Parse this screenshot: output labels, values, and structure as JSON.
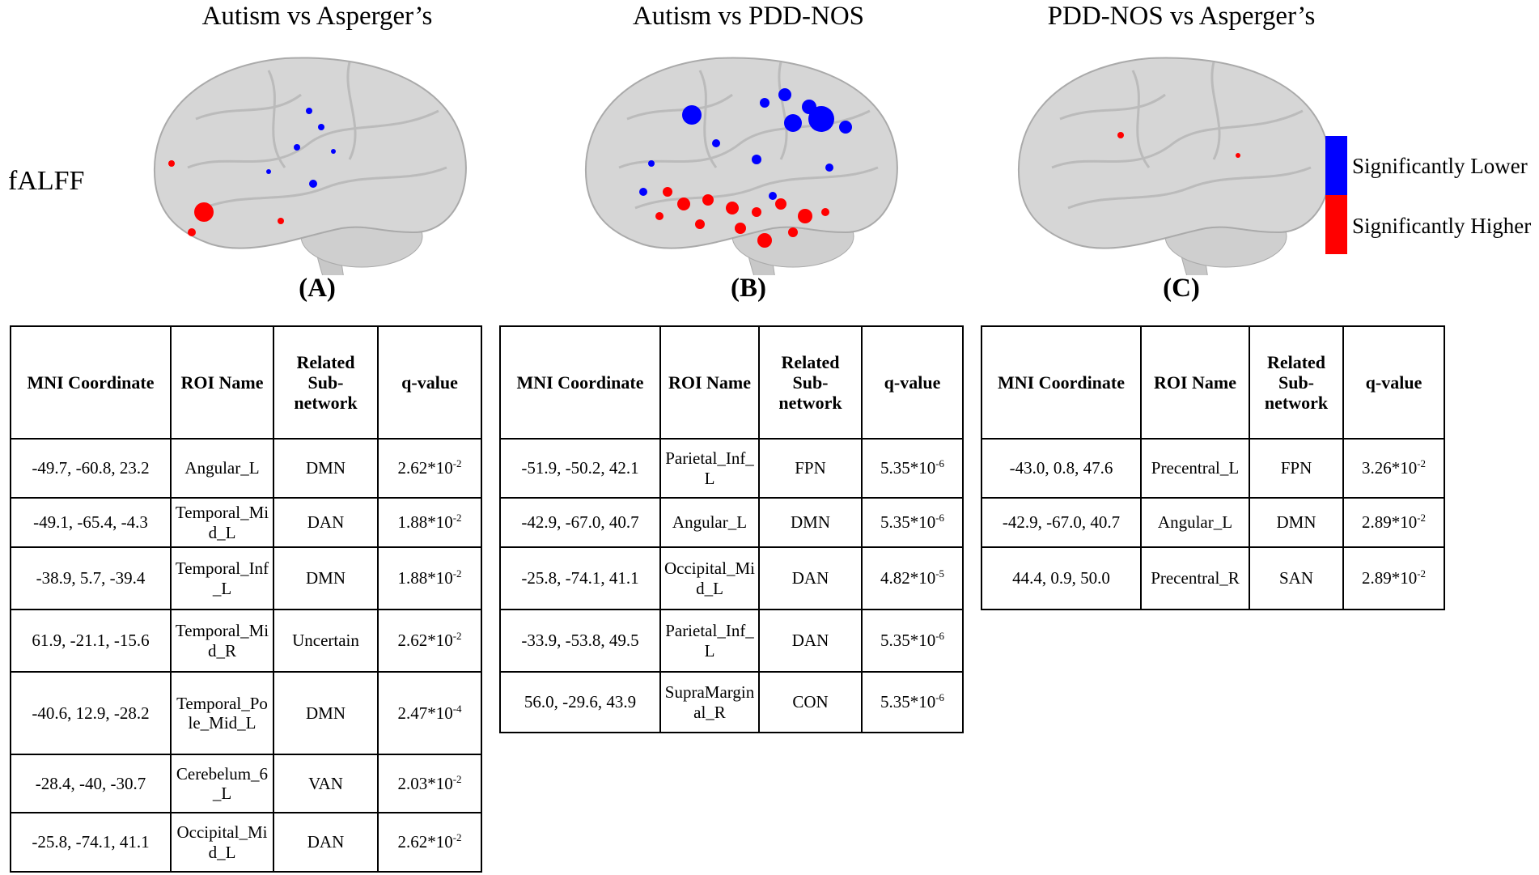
{
  "figure": {
    "row_label": "fALFF",
    "legend": [
      {
        "label": "Significantly Lower",
        "color": "#0000ff"
      },
      {
        "label": "Significantly Higher",
        "color": "#ff0000"
      }
    ],
    "columns": [
      "MNI Coordinate",
      "ROI Name",
      "Related Sub-network",
      "q-value"
    ],
    "panels": [
      {
        "title": "Autism vs Asperger’s",
        "label": "(A)",
        "rows": [
          [
            "-49.7, -60.8, 23.2",
            "Angular_L",
            "DMN",
            {
              "mantissa": "2.62*10",
              "exponent": "-2"
            }
          ],
          [
            "-49.1, -65.4, -4.3",
            "Temporal_Mid_L",
            "DAN",
            {
              "mantissa": "1.88*10",
              "exponent": "-2"
            }
          ],
          [
            "-38.9, 5.7, -39.4",
            "Temporal_Inf_L",
            "DMN",
            {
              "mantissa": "1.88*10",
              "exponent": "-2"
            }
          ],
          [
            "61.9, -21.1, -15.6",
            "Temporal_Mid_R",
            "Uncertain",
            {
              "mantissa": "2.62*10",
              "exponent": "-2"
            }
          ],
          [
            "-40.6, 12.9, -28.2",
            "Temporal_Pole_Mid_L",
            "DMN",
            {
              "mantissa": "2.47*10",
              "exponent": "-4"
            }
          ],
          [
            "-28.4, -40, -30.7",
            "Cerebelum_6_L",
            "VAN",
            {
              "mantissa": "2.03*10",
              "exponent": "-2"
            }
          ],
          [
            "-25.8, -74.1, 41.1",
            "Occipital_Mid_L",
            "DAN",
            {
              "mantissa": "2.62*10",
              "exponent": "-2"
            }
          ]
        ]
      },
      {
        "title": "Autism vs PDD-NOS",
        "label": "(B)",
        "rows": [
          [
            "-51.9, -50.2, 42.1",
            "Parietal_Inf_L",
            "FPN",
            {
              "mantissa": "5.35*10",
              "exponent": "-6"
            }
          ],
          [
            "-42.9, -67.0, 40.7",
            "Angular_L",
            "DMN",
            {
              "mantissa": "5.35*10",
              "exponent": "-6"
            }
          ],
          [
            "-25.8, -74.1, 41.1",
            "Occipital_Mid_L",
            "DAN",
            {
              "mantissa": "4.82*10",
              "exponent": "-5"
            }
          ],
          [
            "-33.9, -53.8, 49.5",
            "Parietal_Inf_L",
            "DAN",
            {
              "mantissa": "5.35*10",
              "exponent": "-6"
            }
          ],
          [
            "56.0, -29.6, 43.9",
            "SupraMarginal_R",
            "CON",
            {
              "mantissa": "5.35*10",
              "exponent": "-6"
            }
          ]
        ]
      },
      {
        "title": "PDD-NOS vs Asperger’s",
        "label": "(C)",
        "rows": [
          [
            "-43.0, 0.8, 47.6",
            "Precentral_L",
            "FPN",
            {
              "mantissa": "3.26*10",
              "exponent": "-2"
            }
          ],
          [
            "-42.9, -67.0, 40.7",
            "Angular_L",
            "DMN",
            {
              "mantissa": "2.89*10",
              "exponent": "-2"
            }
          ],
          [
            "44.4, 0.9, 50.0",
            "Precentral_R",
            "SAN",
            {
              "mantissa": "2.89*10",
              "exponent": "-2"
            }
          ]
        ]
      }
    ]
  }
}
